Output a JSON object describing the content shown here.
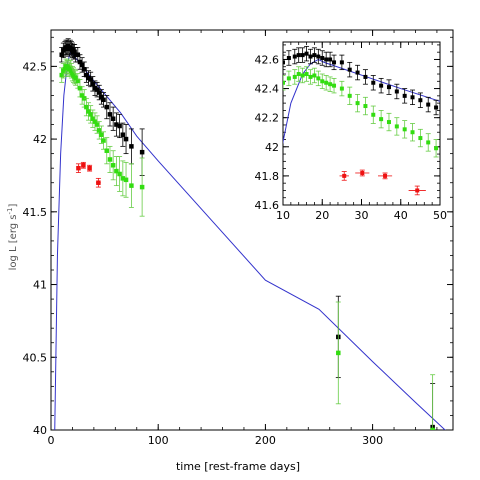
{
  "colors": {
    "model": "#3333cc",
    "black": "#000000",
    "green": "#33dd11",
    "green_err": "#66cc44",
    "red": "#ee1111"
  },
  "chart_data": [
    {
      "type": "scatter",
      "panel": "main",
      "xlabel": "time [rest-frame days]",
      "ylabel": "log L [erg s",
      "ylabel_sup": "-1",
      "ylabel_end": "]",
      "xlim": [
        0,
        375
      ],
      "ylim": [
        40,
        42.75
      ],
      "xticks": [
        0,
        100,
        200,
        300
      ],
      "xtick_labels": [
        "0",
        "100",
        "200",
        "300"
      ],
      "yticks": [
        40,
        40.5,
        41,
        41.5,
        42,
        42.5
      ],
      "ytick_labels": [
        "40",
        "40.5",
        "41",
        "41.5",
        "42",
        "42.5"
      ],
      "grid": false,
      "model": {
        "x": [
          3.5,
          6,
          9,
          12,
          15,
          17,
          19,
          20.5,
          40,
          65,
          80,
          100,
          150,
          200,
          250,
          300,
          340,
          372
        ],
        "y": [
          40.0,
          41.2,
          41.9,
          42.3,
          42.5,
          42.57,
          42.6,
          42.58,
          42.4,
          42.18,
          42.02,
          41.85,
          41.44,
          41.03,
          40.83,
          40.47,
          40.19,
          39.97
        ]
      },
      "series": [
        {
          "color": "black",
          "x": [
            10,
            11.5,
            13,
            14,
            15,
            16,
            17,
            18,
            19,
            20,
            21,
            22,
            23,
            25,
            27,
            29,
            31,
            33,
            35,
            37,
            39,
            41,
            43,
            45,
            47,
            49,
            52,
            55,
            58,
            61,
            64,
            67,
            70,
            75,
            85,
            268,
            356
          ],
          "y": [
            42.58,
            42.61,
            42.62,
            42.63,
            42.63,
            42.64,
            42.62,
            42.63,
            42.62,
            42.61,
            42.6,
            42.6,
            42.58,
            42.58,
            42.53,
            42.51,
            42.48,
            42.44,
            42.42,
            42.41,
            42.38,
            42.35,
            42.34,
            42.32,
            42.29,
            42.27,
            42.22,
            42.17,
            42.14,
            42.1,
            42.09,
            42.03,
            42.0,
            41.95,
            41.91,
            40.64,
            40.02
          ],
          "err": [
            0.05,
            0.05,
            0.05,
            0.05,
            0.05,
            0.05,
            0.05,
            0.05,
            0.05,
            0.05,
            0.05,
            0.05,
            0.05,
            0.05,
            0.05,
            0.05,
            0.05,
            0.05,
            0.05,
            0.05,
            0.05,
            0.05,
            0.05,
            0.05,
            0.05,
            0.05,
            0.08,
            0.08,
            0.08,
            0.08,
            0.08,
            0.08,
            0.1,
            0.12,
            0.16,
            0.28,
            0.3
          ]
        },
        {
          "color": "green",
          "x": [
            10,
            11.5,
            13,
            14,
            15,
            16,
            17,
            18,
            19,
            20,
            21,
            22,
            23,
            25,
            27,
            29,
            31,
            33,
            35,
            37,
            39,
            41,
            43,
            45,
            47,
            49,
            52,
            55,
            58,
            61,
            64,
            67,
            70,
            75,
            85,
            268,
            356
          ],
          "y": [
            42.44,
            42.47,
            42.48,
            42.5,
            42.49,
            42.5,
            42.48,
            42.49,
            42.47,
            42.45,
            42.44,
            42.43,
            42.42,
            42.4,
            42.35,
            42.3,
            42.28,
            42.22,
            42.19,
            42.17,
            42.14,
            42.12,
            42.1,
            42.06,
            42.03,
            41.99,
            41.92,
            41.86,
            41.82,
            41.78,
            41.76,
            41.73,
            41.72,
            41.68,
            41.67,
            40.53,
            40.0
          ],
          "err": [
            0.05,
            0.05,
            0.05,
            0.05,
            0.05,
            0.05,
            0.05,
            0.05,
            0.05,
            0.05,
            0.05,
            0.05,
            0.05,
            0.05,
            0.06,
            0.06,
            0.06,
            0.06,
            0.06,
            0.06,
            0.06,
            0.06,
            0.06,
            0.06,
            0.06,
            0.06,
            0.09,
            0.09,
            0.1,
            0.1,
            0.12,
            0.12,
            0.12,
            0.15,
            0.2,
            0.35,
            0.38
          ]
        },
        {
          "color": "red",
          "x": [
            25.6,
            30.2,
            36.0,
            44.2
          ],
          "y": [
            41.8,
            41.82,
            41.8,
            41.7
          ],
          "err": [
            0.03,
            0.02,
            0.02,
            0.03
          ],
          "xerr": [
            1.2,
            1.8,
            1.8,
            2.2
          ]
        }
      ]
    },
    {
      "type": "scatter",
      "panel": "inset",
      "xlim": [
        10,
        50
      ],
      "ylim": [
        41.6,
        42.72
      ],
      "xticks": [
        10,
        20,
        30,
        40,
        50
      ],
      "xtick_labels": [
        "10",
        "20",
        "30",
        "40",
        "50"
      ],
      "yticks": [
        41.6,
        41.8,
        42,
        42.2,
        42.4,
        42.6
      ],
      "ytick_labels": [
        "41.6",
        "41.8",
        "42",
        "42.2",
        "42.4",
        "42.6"
      ],
      "note": "zoom of main panel, same series"
    }
  ]
}
